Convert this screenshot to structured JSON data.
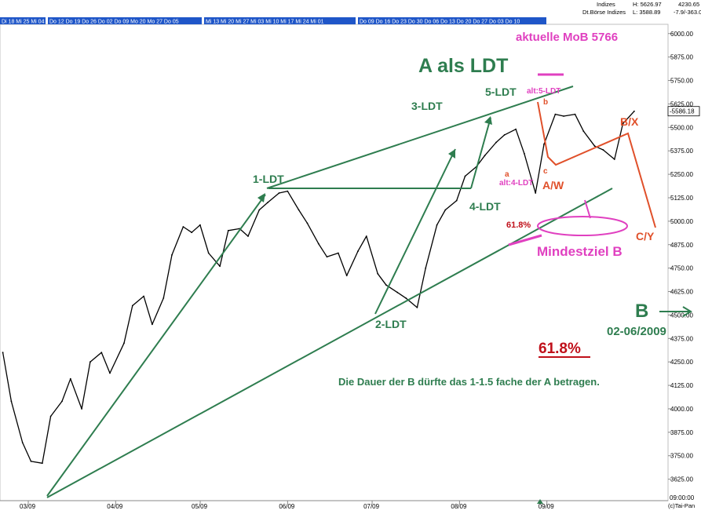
{
  "header": {
    "top_dates": [
      {
        "label": "Di 18  Mi 25  Mi 04"
      },
      {
        "label": "Do 12  Do 19  Do 26  Do 02  Do 09  Mo 20  Mo 27  Do 05"
      },
      {
        "label": "Mi 13  Mi 20  Mi 27  Mi 03  Mi 10  Mi 17  Mi 24  Mi 01"
      },
      {
        "label": "Do 09  Do 16  Do 23  Do 30  Do 06  Do 13  Do 20  Do 27  Do 03  Do 10"
      }
    ],
    "indices_label": "Indizes",
    "dt_boerse_label": "Dt.Börse Indizes",
    "high_text": "H: 5626.97",
    "low_text": "L: 3588.89",
    "value_text": "4230.65",
    "change_text": "-7.9/-363.0"
  },
  "axes": {
    "x_ticks": [
      "03/09",
      "04/09",
      "05/09",
      "06/09",
      "07/09",
      "08/09",
      "09/09"
    ],
    "y_ticks": [
      "3625.00",
      "3750.00",
      "3875.00",
      "4000.00",
      "4125.00",
      "4250.00",
      "4375.00",
      "4500.00",
      "4625.00",
      "4750.00",
      "4875.00",
      "5000.00",
      "5125.00",
      "5250.00",
      "5375.00",
      "5500.00",
      "5625.00",
      "5750.00",
      "5875.00",
      "6000.00"
    ],
    "current_price": "5586.18",
    "time_label": "09:00:00",
    "copyright": "(c)Tai-Pan"
  },
  "chart_data": {
    "type": "line",
    "ylim": [
      3590,
      6020
    ],
    "xlim": [
      "2009-03-01",
      "2009-10-24"
    ],
    "x_ticks": [
      "03/09",
      "04/09",
      "05/09",
      "06/09",
      "07/09",
      "08/09",
      "09/09"
    ],
    "series": [
      {
        "points": [
          [
            "2009-03-02",
            4300
          ],
          [
            "2009-03-05",
            4040
          ],
          [
            "2009-03-09",
            3820
          ],
          [
            "2009-03-12",
            3720
          ],
          [
            "2009-03-16",
            3710
          ],
          [
            "2009-03-19",
            3960
          ],
          [
            "2009-03-23",
            4040
          ],
          [
            "2009-03-26",
            4160
          ],
          [
            "2009-03-30",
            4000
          ],
          [
            "2009-04-02",
            4250
          ],
          [
            "2009-04-06",
            4300
          ],
          [
            "2009-04-09",
            4190
          ],
          [
            "2009-04-14",
            4350
          ],
          [
            "2009-04-17",
            4550
          ],
          [
            "2009-04-21",
            4600
          ],
          [
            "2009-04-24",
            4450
          ],
          [
            "2009-04-28",
            4590
          ],
          [
            "2009-05-01",
            4820
          ],
          [
            "2009-05-05",
            4970
          ],
          [
            "2009-05-08",
            4940
          ],
          [
            "2009-05-11",
            4980
          ],
          [
            "2009-05-14",
            4830
          ],
          [
            "2009-05-18",
            4760
          ],
          [
            "2009-05-21",
            4950
          ],
          [
            "2009-05-25",
            4960
          ],
          [
            "2009-05-28",
            4920
          ],
          [
            "2009-06-01",
            5060
          ],
          [
            "2009-06-04",
            5100
          ],
          [
            "2009-06-08",
            5150
          ],
          [
            "2009-06-11",
            5160
          ],
          [
            "2009-06-15",
            5060
          ],
          [
            "2009-06-18",
            4990
          ],
          [
            "2009-06-22",
            4880
          ],
          [
            "2009-06-25",
            4810
          ],
          [
            "2009-06-29",
            4830
          ],
          [
            "2009-07-02",
            4710
          ],
          [
            "2009-07-06",
            4840
          ],
          [
            "2009-07-09",
            4920
          ],
          [
            "2009-07-13",
            4720
          ],
          [
            "2009-07-16",
            4660
          ],
          [
            "2009-07-20",
            4620
          ],
          [
            "2009-07-23",
            4590
          ],
          [
            "2009-07-27",
            4540
          ],
          [
            "2009-07-30",
            4750
          ],
          [
            "2009-08-03",
            4980
          ],
          [
            "2009-08-06",
            5060
          ],
          [
            "2009-08-10",
            5110
          ],
          [
            "2009-08-13",
            5240
          ],
          [
            "2009-08-17",
            5290
          ],
          [
            "2009-08-20",
            5350
          ],
          [
            "2009-08-24",
            5420
          ],
          [
            "2009-08-27",
            5460
          ],
          [
            "2009-08-31",
            5490
          ],
          [
            "2009-09-03",
            5360
          ],
          [
            "2009-09-07",
            5150
          ],
          [
            "2009-09-10",
            5410
          ],
          [
            "2009-09-14",
            5570
          ],
          [
            "2009-09-17",
            5560
          ],
          [
            "2009-09-21",
            5570
          ],
          [
            "2009-09-24",
            5480
          ],
          [
            "2009-09-28",
            5400
          ],
          [
            "2009-10-01",
            5380
          ],
          [
            "2009-10-05",
            5330
          ],
          [
            "2009-10-08",
            5520
          ],
          [
            "2009-10-12",
            5586
          ]
        ]
      }
    ]
  },
  "annotations": {
    "title": "A als LDT",
    "aktuelle": "aktuelle MoB 5766",
    "wave_1": "1-LDT",
    "wave_2": "2-LDT",
    "wave_3": "3-LDT",
    "wave_4": "4-LDT",
    "wave_5": "5-LDT",
    "alt_5": "alt:5-LDT",
    "alt_4": "alt:4-LDT",
    "small_a": "a",
    "small_b": "b",
    "small_c": "c",
    "aw": "A/W",
    "bx": "B/X",
    "cy": "C/Y",
    "fib_small": "61.8%",
    "mindestziel": "Mindestziel B",
    "b_big": "B",
    "b_date": "02-06/2009",
    "fib_big": "61.8%",
    "dauer": "Die Dauer der B dürfte das 1-1.5 fache der A betragen."
  },
  "colors": {
    "price": "#000000",
    "wave": "#2e7d4f",
    "magenta": "#e040c0",
    "orange": "#e0502a",
    "fib_red": "#c0101a",
    "header_bar": "#1f56c8",
    "header_text": "#ffffff"
  }
}
